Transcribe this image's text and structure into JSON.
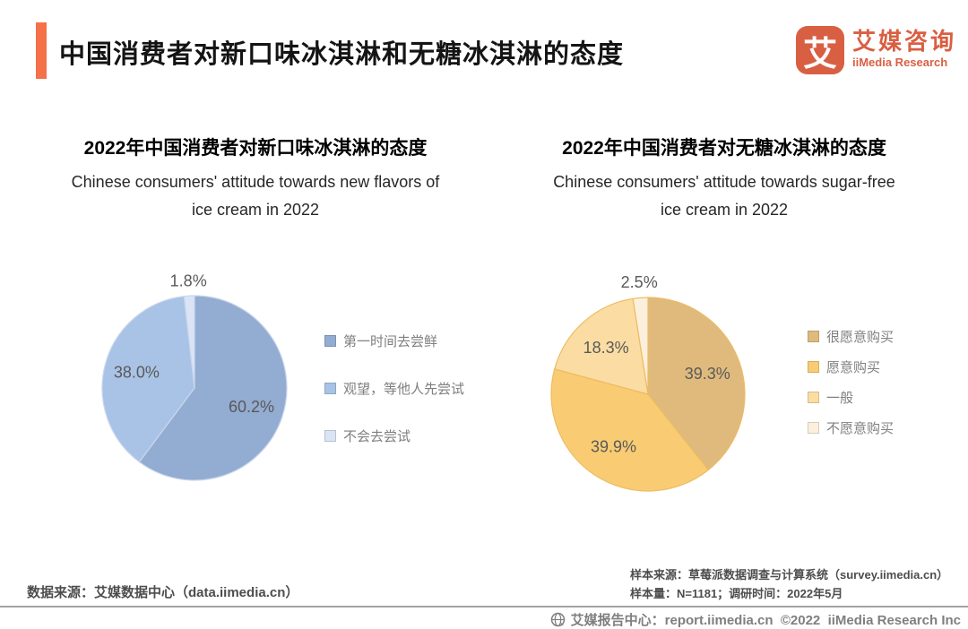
{
  "header": {
    "title": "中国消费者对新口味冰淇淋和无糖冰淇淋的态度",
    "accent_color": "#F4714A",
    "logo": {
      "glyph": "艾",
      "name_cn": "艾媒咨询",
      "name_en": "iiMedia Research",
      "brand_color": "#D95F43"
    }
  },
  "chart_data": [
    {
      "type": "pie",
      "title": "2022年中国消费者对新口味冰淇淋的态度",
      "subtitle_lines": [
        "Chinese consumers' attitude towards new flavors of",
        "ice cream in 2022"
      ],
      "labels": [
        "第一时间去尝鲜",
        "观望，等他人先尝试",
        "不会去尝试"
      ],
      "values": [
        60.2,
        38.0,
        1.8
      ],
      "value_labels": [
        "60.2%",
        "38.0%",
        "1.8%"
      ],
      "colors": [
        "#93ACD2",
        "#A9C3E6",
        "#DAE4F4"
      ],
      "stroke_color": "#CAD6EC",
      "label_color": "#595959",
      "start_angle": 0,
      "direction": "clockwise",
      "legend_position": "right"
    },
    {
      "type": "pie",
      "title": "2022年中国消费者对无糖冰淇淋的态度",
      "subtitle_lines": [
        "Chinese consumers' attitude towards sugar-free",
        "ice cream in 2022"
      ],
      "labels": [
        "很愿意购买",
        "愿意购买",
        "一般",
        "不愿意购买"
      ],
      "values": [
        39.3,
        39.9,
        18.3,
        2.5
      ],
      "value_labels": [
        "39.3%",
        "39.9%",
        "18.3%",
        "2.5%"
      ],
      "colors": [
        "#E0BA7D",
        "#F9CC74",
        "#FBDDA3",
        "#FCF0DC"
      ],
      "stroke_color": "#ECBC62",
      "label_color": "#595959",
      "start_angle": 0,
      "direction": "clockwise",
      "legend_position": "right"
    }
  ],
  "footnotes": {
    "left": "数据来源：艾媒数据中心（data.iimedia.cn）",
    "right_line1": "样本来源：草莓派数据调查与计算系统（survey.iimedia.cn）",
    "right_line2": "样本量：N=1181；调研时间：2022年5月"
  },
  "footer": {
    "icon": "globe-icon",
    "text": "艾媒报告中心：report.iimedia.cn  ©2022  iiMedia Research Inc"
  }
}
